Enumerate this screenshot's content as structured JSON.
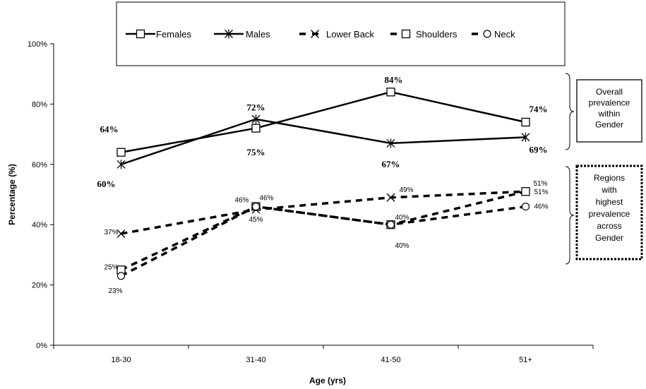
{
  "chart_data": {
    "type": "line",
    "xlabel": "Age (yrs)",
    "ylabel": "Percentage (%)",
    "ylim": [
      0,
      100
    ],
    "yticks": [
      0,
      20,
      40,
      60,
      80,
      100
    ],
    "ytick_labels": [
      "0%",
      "20%",
      "40%",
      "60%",
      "80%",
      "100%"
    ],
    "categories": [
      "18-30",
      "31-40",
      "41-50",
      "51+"
    ],
    "legend_placement": "top",
    "grid": false,
    "series": [
      {
        "name": "Females",
        "values": [
          64,
          72,
          84,
          74
        ],
        "line": "solid",
        "marker": "square",
        "labels": [
          "64%",
          "72%",
          "84%",
          "74%"
        ],
        "label_style": "large"
      },
      {
        "name": "Males",
        "values": [
          60,
          75,
          67,
          69
        ],
        "line": "solid",
        "marker": "asterisk",
        "labels": [
          "60%",
          "75%",
          "67%",
          "69%"
        ],
        "label_style": "large"
      },
      {
        "name": "Lower Back",
        "values": [
          37,
          45,
          49,
          51
        ],
        "line": "dashed",
        "marker": "x",
        "labels": [
          "37%",
          "45%",
          "49%",
          "51%"
        ],
        "label_style": "small"
      },
      {
        "name": "Shoulders",
        "values": [
          25,
          46,
          40,
          51
        ],
        "line": "dashed",
        "marker": "square",
        "labels": [
          "25%",
          "46%",
          "40%",
          "51%"
        ],
        "label_style": "small"
      },
      {
        "name": "Neck",
        "values": [
          23,
          46,
          40,
          46
        ],
        "line": "dashed",
        "marker": "circle",
        "labels": [
          "23%",
          "46%",
          "40%",
          "46%"
        ],
        "label_style": "small"
      }
    ],
    "annotations": [
      {
        "key": "overall",
        "lines": [
          "Overall",
          "prevalence",
          "within",
          "Gender"
        ],
        "border": "solid"
      },
      {
        "key": "regions",
        "lines": [
          "Regions",
          "with",
          "highest",
          "prevalence",
          "across",
          "Gender"
        ],
        "border": "dotted"
      }
    ]
  }
}
